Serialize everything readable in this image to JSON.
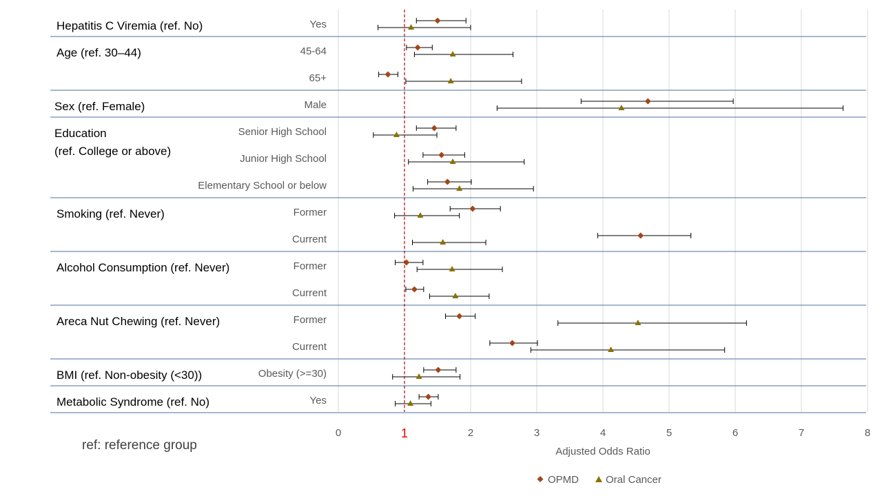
{
  "colors": {
    "opmd": "#a0471c",
    "oral_cancer": "#8b7100",
    "ref_line": "#c00000",
    "grid": "#d9d9d9",
    "separator": "#4a6fa5"
  },
  "footnote": "ref: reference group",
  "chart_data": {
    "type": "forest",
    "xlabel": "Adjusted Odds Ratio",
    "xlim": [
      0,
      8
    ],
    "xticks": [
      "0",
      "1",
      "2",
      "3",
      "4",
      "5",
      "6",
      "7",
      "8"
    ],
    "reference_value": 1,
    "reference_label": "1",
    "legend": [
      {
        "key": "opmd",
        "label": "OPMD",
        "marker": "diamond"
      },
      {
        "key": "oral_cancer",
        "label": "Oral Cancer",
        "marker": "triangle"
      }
    ],
    "groups": [
      {
        "label_lines": [
          "Hepatitis C Viremia (ref. No)"
        ],
        "rows": [
          {
            "label": "Yes",
            "opmd": {
              "or": 1.5,
              "lo": 1.18,
              "hi": 1.93
            },
            "oral_cancer": {
              "or": 1.1,
              "lo": 0.6,
              "hi": 2.0
            }
          }
        ]
      },
      {
        "label_lines": [
          "Age (ref. 30–44)"
        ],
        "rows": [
          {
            "label": "45-64",
            "opmd": {
              "or": 1.2,
              "lo": 1.03,
              "hi": 1.42
            },
            "oral_cancer": {
              "or": 1.73,
              "lo": 1.15,
              "hi": 2.64
            }
          },
          {
            "label": "65+",
            "opmd": {
              "or": 0.75,
              "lo": 0.61,
              "hi": 0.9
            },
            "oral_cancer": {
              "or": 1.7,
              "lo": 1.02,
              "hi": 2.77
            }
          }
        ]
      },
      {
        "label_lines": [
          "Sex (ref. Female)"
        ],
        "rows": [
          {
            "label": "Male",
            "opmd": {
              "or": 4.68,
              "lo": 3.67,
              "hi": 5.97
            },
            "oral_cancer": {
              "or": 4.28,
              "lo": 2.4,
              "hi": 7.63
            }
          }
        ]
      },
      {
        "label_lines": [
          "Education",
          "(ref. College or above)"
        ],
        "rows": [
          {
            "label": "Senior High School",
            "opmd": {
              "or": 1.45,
              "lo": 1.18,
              "hi": 1.78
            },
            "oral_cancer": {
              "or": 0.88,
              "lo": 0.53,
              "hi": 1.49
            }
          },
          {
            "label": "Junior High School",
            "opmd": {
              "or": 1.56,
              "lo": 1.28,
              "hi": 1.91
            },
            "oral_cancer": {
              "or": 1.73,
              "lo": 1.06,
              "hi": 2.81
            }
          },
          {
            "label": "Elementary School or below",
            "opmd": {
              "or": 1.65,
              "lo": 1.35,
              "hi": 2.01
            },
            "oral_cancer": {
              "or": 1.83,
              "lo": 1.13,
              "hi": 2.95
            }
          }
        ]
      },
      {
        "label_lines": [
          "Smoking (ref. Never)"
        ],
        "rows": [
          {
            "label": "Former",
            "opmd": {
              "or": 2.03,
              "lo": 1.69,
              "hi": 2.45
            },
            "oral_cancer": {
              "or": 1.24,
              "lo": 0.85,
              "hi": 1.83
            }
          },
          {
            "label": "Current",
            "opmd": {
              "or": 4.57,
              "lo": 3.92,
              "hi": 5.33
            },
            "oral_cancer": {
              "or": 1.58,
              "lo": 1.12,
              "hi": 2.23
            }
          }
        ]
      },
      {
        "label_lines": [
          "Alcohol Consumption (ref. Never)"
        ],
        "rows": [
          {
            "label": "Former",
            "opmd": {
              "or": 1.03,
              "lo": 0.86,
              "hi": 1.28
            },
            "oral_cancer": {
              "or": 1.72,
              "lo": 1.19,
              "hi": 2.48
            }
          },
          {
            "label": "Current",
            "opmd": {
              "or": 1.15,
              "lo": 1.02,
              "hi": 1.29
            },
            "oral_cancer": {
              "or": 1.77,
              "lo": 1.38,
              "hi": 2.28
            }
          }
        ]
      },
      {
        "label_lines": [
          "Areca Nut Chewing (ref. Never)"
        ],
        "rows": [
          {
            "label": "Former",
            "opmd": {
              "or": 1.83,
              "lo": 1.62,
              "hi": 2.07
            },
            "oral_cancer": {
              "or": 4.53,
              "lo": 3.32,
              "hi": 6.17
            }
          },
          {
            "label": "Current",
            "opmd": {
              "or": 2.63,
              "lo": 2.29,
              "hi": 3.01
            },
            "oral_cancer": {
              "or": 4.12,
              "lo": 2.91,
              "hi": 5.84
            }
          }
        ]
      },
      {
        "label_lines": [
          "BMI (ref. Non-obesity (<30))"
        ],
        "rows": [
          {
            "label": "Obesity (>=30)",
            "opmd": {
              "or": 1.51,
              "lo": 1.29,
              "hi": 1.78
            },
            "oral_cancer": {
              "or": 1.22,
              "lo": 0.82,
              "hi": 1.84
            }
          }
        ]
      },
      {
        "label_lines": [
          "Metabolic Syndrome (ref. No)"
        ],
        "rows": [
          {
            "label": "Yes",
            "opmd": {
              "or": 1.36,
              "lo": 1.22,
              "hi": 1.51
            },
            "oral_cancer": {
              "or": 1.09,
              "lo": 0.86,
              "hi": 1.4
            }
          }
        ]
      }
    ]
  }
}
